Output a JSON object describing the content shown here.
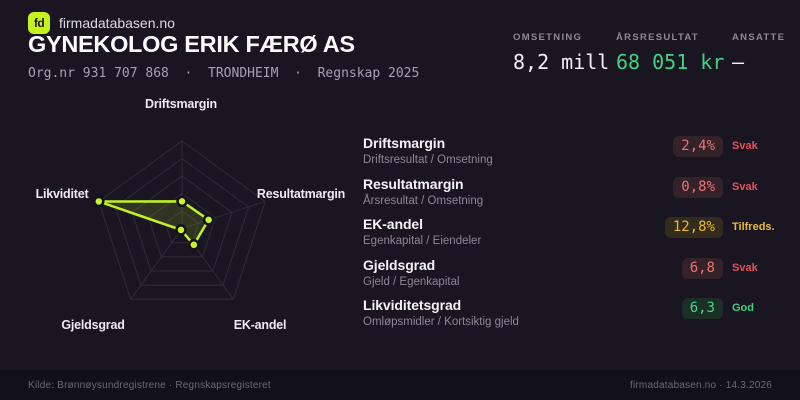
{
  "brand": {
    "logo_text": "fd",
    "site_name": "firmadatabasen.no"
  },
  "header": {
    "title": "GYNEKOLOG ERIK FÆRØ AS",
    "subtitle": "Org.nr 931 707 868  ·  TRONDHEIM  ·  Regnskap 2025"
  },
  "stats": [
    {
      "label": "OMSETNING",
      "value": "8,2 mill",
      "tone": "white"
    },
    {
      "label": "ÅRSRESULTAT",
      "value": "68 051 kr",
      "tone": "green"
    },
    {
      "label": "ANSATTE",
      "value": "–",
      "tone": "white"
    }
  ],
  "chart_data": {
    "type": "radar",
    "axes": [
      "Driftsmargin",
      "Resultatmargin",
      "EK-andel",
      "Gjeldsgrad",
      "Likviditet"
    ],
    "values_normalized": [
      0.31,
      0.32,
      0.23,
      0.02,
      1.0
    ],
    "values_display": [
      "2,4%",
      "0,8%",
      "12,8%",
      "6,8",
      "6,3"
    ],
    "rings": 5,
    "grid": true,
    "accent": "#c3f122"
  },
  "metrics": [
    {
      "name": "Driftsmargin",
      "formula": "Driftsresultat / Omsetning",
      "value": "2,4%",
      "status": "Svak",
      "tone": "red"
    },
    {
      "name": "Resultatmargin",
      "formula": "Årsresultat / Omsetning",
      "value": "0,8%",
      "status": "Svak",
      "tone": "red"
    },
    {
      "name": "EK-andel",
      "formula": "Egenkapital / Eiendeler",
      "value": "12,8%",
      "status": "Tilfreds.",
      "tone": "yellow"
    },
    {
      "name": "Gjeldsgrad",
      "formula": "Gjeld / Egenkapital",
      "value": "6,8",
      "status": "Svak",
      "tone": "red"
    },
    {
      "name": "Likviditetsgrad",
      "formula": "Omløpsmidler / Kortsiktig gjeld",
      "value": "6,3",
      "status": "God",
      "tone": "green"
    }
  ],
  "footer": {
    "left": "Kilde: Brønnøysundregistrene · Regnskapsregisteret",
    "right": "firmadatabasen.no · 14.3.2026"
  },
  "colors": {
    "background": "#191621",
    "footer_background": "#121018",
    "accent": "#c3f122",
    "green": "#43d183",
    "red": "#f07079",
    "yellow": "#eaba35"
  }
}
